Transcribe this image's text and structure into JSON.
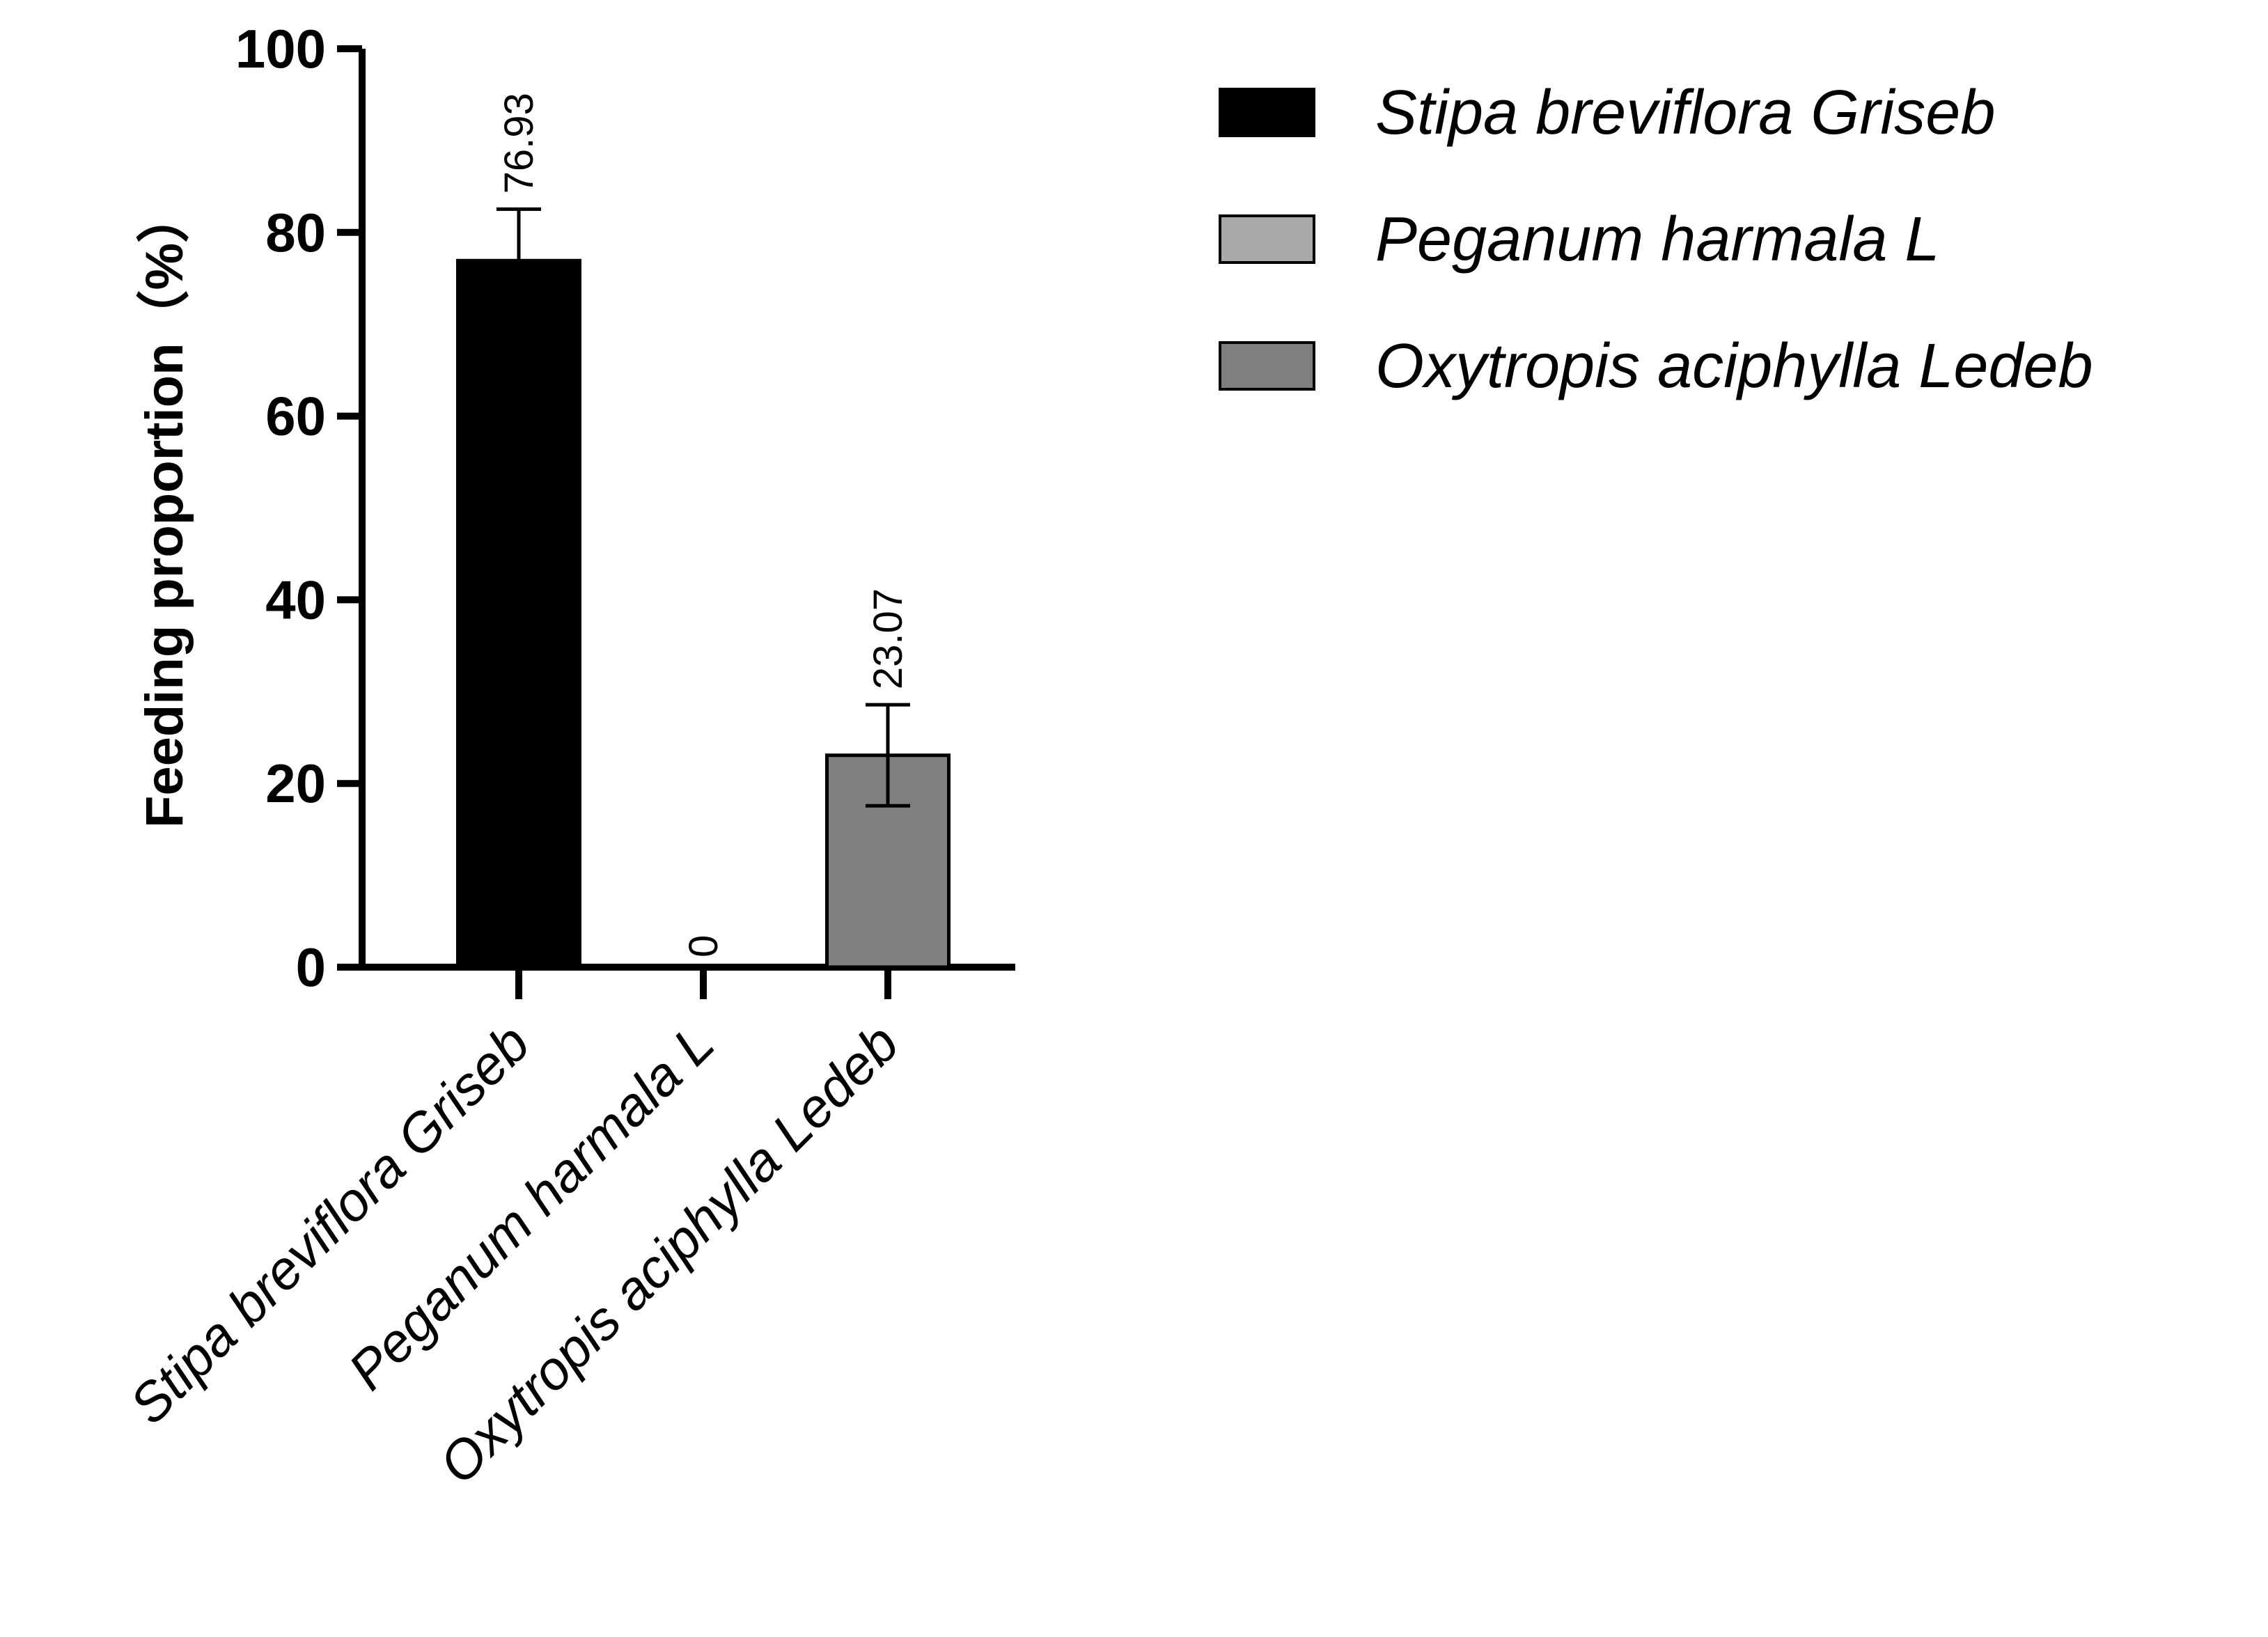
{
  "chart_data": {
    "type": "bar",
    "title": "",
    "xlabel": "",
    "ylabel": "Feeding proportion（%）",
    "ylim": [
      0,
      100
    ],
    "yticks": [
      0,
      20,
      40,
      60,
      80,
      100
    ],
    "grid": false,
    "legend_position": "top-right",
    "categories": [
      "Stipa breviflora Griseb",
      "Peganum harmala L",
      "Oxytropis aciphylla Ledeb"
    ],
    "values": [
      76.93,
      0,
      23.07
    ],
    "error_bars": [
      5.6,
      0,
      5.5
    ],
    "data_labels": [
      "76.93",
      "0",
      "23.07"
    ],
    "colors": [
      "#000000",
      "#a9a9a9",
      "#7f7f7f"
    ],
    "legend": [
      {
        "name": "Stipa breviflora Griseb",
        "color": "#000000"
      },
      {
        "name": "Peganum harmala L",
        "color": "#a9a9a9"
      },
      {
        "name": "Oxytropis aciphylla Ledeb",
        "color": "#7f7f7f"
      }
    ]
  }
}
